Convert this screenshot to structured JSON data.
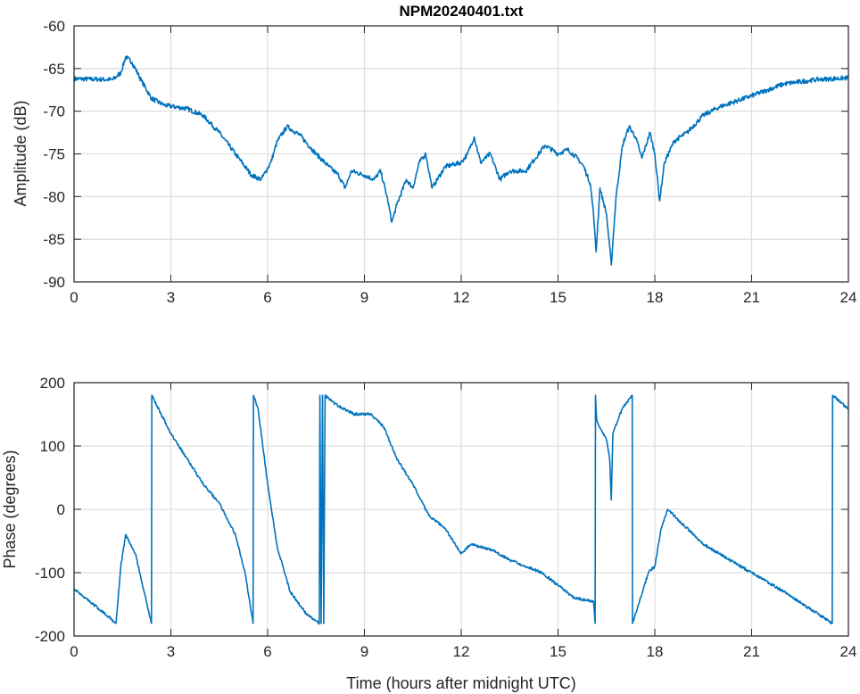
{
  "chart_data": [
    {
      "type": "line",
      "title": "NPM20240401.txt",
      "xlabel": "",
      "ylabel": "Amplitude (dB)",
      "xlim": [
        0,
        24
      ],
      "ylim": [
        -90,
        -60
      ],
      "xticks": [
        "0",
        "3",
        "6",
        "9",
        "12",
        "15",
        "18",
        "21",
        "24"
      ],
      "yticks": [
        "-60",
        "-65",
        "-70",
        "-75",
        "-80",
        "-85",
        "-90"
      ],
      "grid": true,
      "color": "#0072BD",
      "x": [
        0,
        1.2,
        1.45,
        1.6,
        1.8,
        2.1,
        2.4,
        2.8,
        3.5,
        4,
        4.5,
        5,
        5.5,
        5.8,
        6.1,
        6.3,
        6.6,
        7,
        7.5,
        7.9,
        8.2,
        8.4,
        8.6,
        9,
        9.3,
        9.5,
        9.7,
        9.85,
        10,
        10.3,
        10.5,
        10.7,
        10.9,
        11.1,
        11.5,
        12,
        12.2,
        12.4,
        12.6,
        12.9,
        13.2,
        13.5,
        14,
        14.3,
        14.6,
        15,
        15.3,
        15.6,
        15.8,
        16,
        16.1,
        16.18,
        16.3,
        16.5,
        16.65,
        16.8,
        17,
        17.2,
        17.4,
        17.6,
        17.85,
        18,
        18.15,
        18.3,
        18.6,
        19,
        19.5,
        20,
        21,
        21.5,
        22,
        23,
        24
      ],
      "y": [
        -66.2,
        -66.3,
        -65.5,
        -63.6,
        -64.3,
        -66.5,
        -68.5,
        -69.3,
        -69.7,
        -70.5,
        -72.5,
        -75,
        -77.5,
        -78,
        -76,
        -73.5,
        -71.8,
        -72.8,
        -75,
        -76.5,
        -77.5,
        -79,
        -77,
        -77.5,
        -78,
        -77,
        -80,
        -83,
        -81,
        -78,
        -79,
        -76,
        -75,
        -79,
        -76.5,
        -76,
        -75,
        -73,
        -76,
        -75,
        -78,
        -77,
        -77,
        -75.5,
        -74,
        -75,
        -74.5,
        -75.5,
        -76.5,
        -78.5,
        -82,
        -86.5,
        -79,
        -82,
        -88,
        -80,
        -74,
        -71.8,
        -73,
        -75.5,
        -72.5,
        -75,
        -80.5,
        -76,
        -73.5,
        -72.5,
        -70.5,
        -69.5,
        -68.2,
        -67.5,
        -66.8,
        -66.3,
        -66.1
      ]
    },
    {
      "type": "line",
      "title": "",
      "xlabel": "Time (hours after midnight UTC)",
      "ylabel": "Phase (degrees)",
      "xlim": [
        0,
        24
      ],
      "ylim": [
        -200,
        200
      ],
      "xticks": [
        "0",
        "3",
        "6",
        "9",
        "12",
        "15",
        "18",
        "21",
        "24"
      ],
      "yticks": [
        "200",
        "100",
        "0",
        "-100",
        "-200"
      ],
      "grid": true,
      "color": "#0072BD",
      "x": [
        0,
        1.2,
        1.3,
        1.45,
        1.6,
        1.9,
        2.4,
        2.41,
        3,
        4,
        4.5,
        5,
        5.3,
        5.55,
        5.56,
        5.7,
        6,
        6.3,
        6.7,
        7.2,
        7.6,
        7.62,
        7.66,
        7.7,
        7.74,
        7.78,
        8,
        8.3,
        8.7,
        9.2,
        9.6,
        10,
        10.5,
        11,
        11.5,
        12,
        12.3,
        13,
        13.5,
        14,
        14.5,
        15,
        15.5,
        16.1,
        16.15,
        16.16,
        16.2,
        16.5,
        16.6,
        16.65,
        16.7,
        17,
        17.3,
        17.31,
        17.5,
        17.8,
        18,
        18.2,
        18.4,
        18.8,
        19.5,
        20,
        21,
        22,
        23.5,
        23.51,
        24
      ],
      "y": [
        -125,
        -175,
        -180,
        -90,
        -40,
        -70,
        -180,
        180,
        120,
        40,
        10,
        -40,
        -100,
        -180,
        180,
        160,
        40,
        -60,
        -130,
        -165,
        -180,
        180,
        -180,
        180,
        -180,
        180,
        170,
        160,
        150,
        150,
        130,
        80,
        40,
        -10,
        -30,
        -70,
        -55,
        -65,
        -80,
        -90,
        -100,
        -120,
        -140,
        -145,
        -180,
        180,
        140,
        110,
        80,
        15,
        120,
        160,
        180,
        -180,
        -150,
        -100,
        -90,
        -30,
        0,
        -20,
        -55,
        -70,
        -100,
        -130,
        -180,
        180,
        158
      ]
    }
  ]
}
